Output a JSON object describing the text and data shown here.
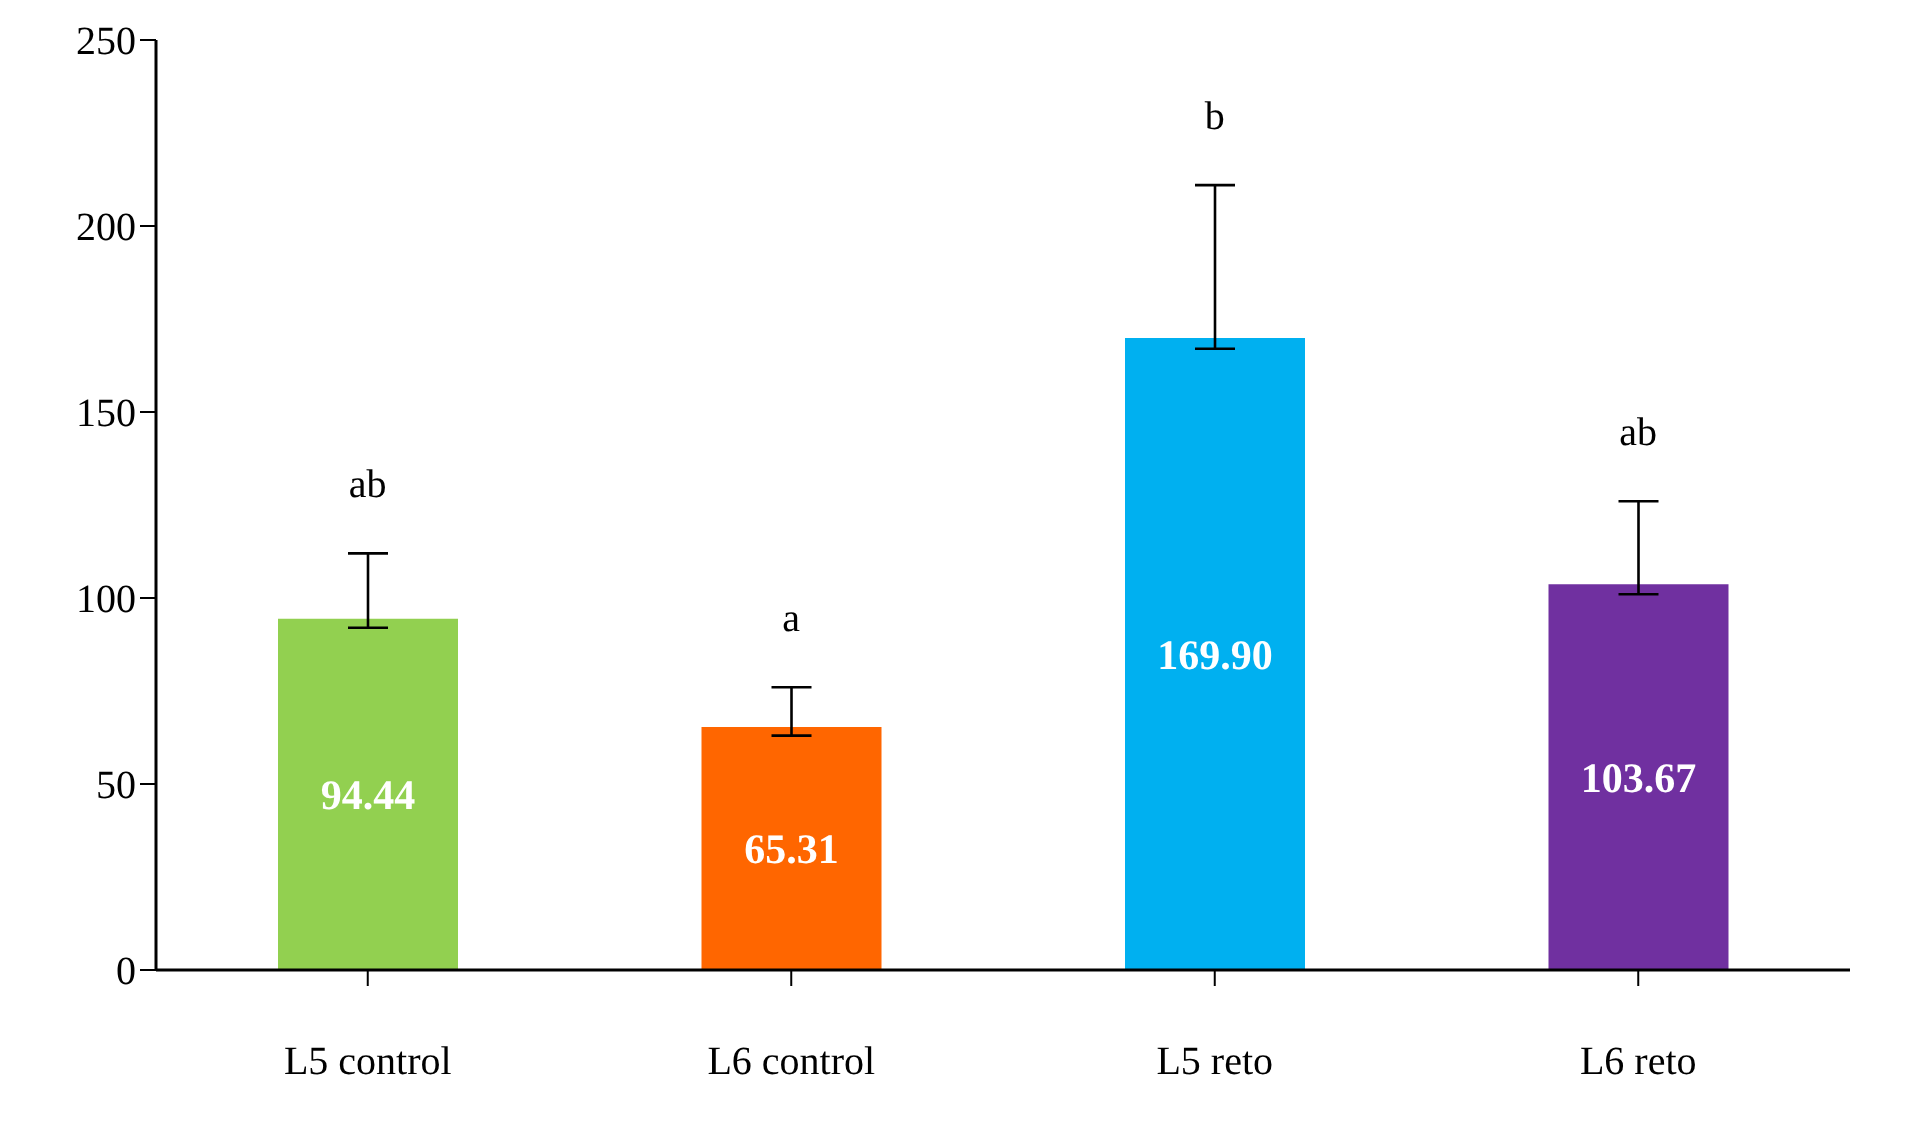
{
  "chart_data": {
    "type": "bar",
    "categories": [
      "L5 control",
      "L6 control",
      "L5 reto",
      "L6 reto"
    ],
    "values": [
      94.44,
      65.31,
      169.9,
      103.67
    ],
    "value_labels": [
      "94.44",
      "65.31",
      "169.90",
      "103.67"
    ],
    "colors": [
      "#92d050",
      "#ff6600",
      "#00b0f0",
      "#7030a0"
    ],
    "errors": [
      [
        92,
        112
      ],
      [
        63,
        76
      ],
      [
        167,
        211
      ],
      [
        101,
        126
      ]
    ],
    "ylim": [
      0,
      250
    ],
    "yticks": [
      0,
      50,
      100,
      150,
      200,
      250
    ],
    "grid": false,
    "legend": false,
    "annotations": [
      "ab",
      "a",
      "b",
      "ab"
    ]
  }
}
